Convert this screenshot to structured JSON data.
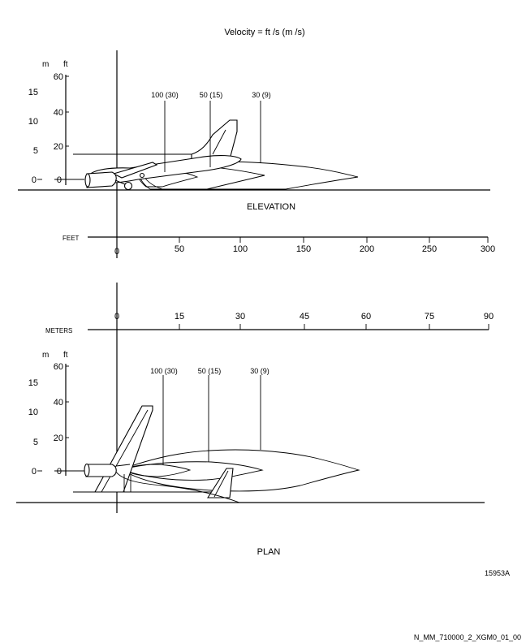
{
  "title": "Velocity   =   ft /s (m /s)",
  "elevation": {
    "label": "ELEVATION",
    "axis_unit_m": "m",
    "axis_unit_ft": "ft",
    "m_ticks": [
      "15",
      "10",
      "5",
      "0"
    ],
    "ft_ticks": [
      "60",
      "40",
      "20",
      "0"
    ],
    "contours": [
      "100 (30)",
      "50 (15)",
      "30 (9)"
    ]
  },
  "plan": {
    "label": "PLAN",
    "axis_unit_m": "m",
    "axis_unit_ft": "ft",
    "m_ticks": [
      "15",
      "10",
      "5",
      "0"
    ],
    "ft_ticks": [
      "60",
      "40",
      "20",
      "0"
    ],
    "contours": [
      "100 (30)",
      "50 (15)",
      "30 (9)"
    ]
  },
  "feet_scale": {
    "label": "FEET",
    "ticks": [
      "0",
      "50",
      "100",
      "150",
      "200",
      "250",
      "300"
    ]
  },
  "meters_scale": {
    "label": "METERS",
    "ticks": [
      "0",
      "15",
      "30",
      "45",
      "60",
      "75",
      "90"
    ]
  },
  "figure_id": "15953A",
  "footer_id": "N_MM_710000_2_XGM0_01_00"
}
